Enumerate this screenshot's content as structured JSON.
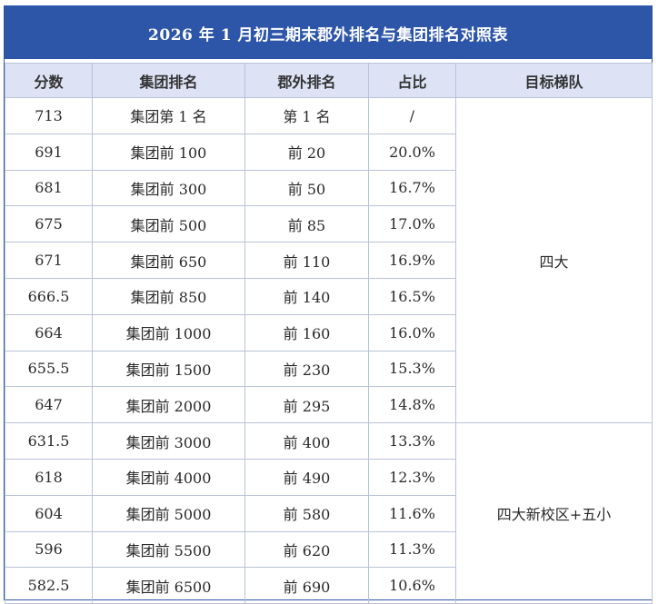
{
  "title": "2026 年 1 月初三期末郡外排名与集团排名对照表",
  "headers": {
    "score": "分数",
    "group_rank": "集团排名",
    "junwai_rank": "郡外排名",
    "ratio": "占比",
    "target_tier": "目标梯队"
  },
  "rows": [
    {
      "score": "713",
      "group_rank": "集团第 1 名",
      "junwai_rank": "第 1 名",
      "ratio": "/"
    },
    {
      "score": "691",
      "group_rank": "集团前 100",
      "junwai_rank": "前 20",
      "ratio": "20.0%"
    },
    {
      "score": "681",
      "group_rank": "集团前 300",
      "junwai_rank": "前 50",
      "ratio": "16.7%"
    },
    {
      "score": "675",
      "group_rank": "集团前 500",
      "junwai_rank": "前 85",
      "ratio": "17.0%"
    },
    {
      "score": "671",
      "group_rank": "集团前 650",
      "junwai_rank": "前 110",
      "ratio": "16.9%"
    },
    {
      "score": "666.5",
      "group_rank": "集团前 850",
      "junwai_rank": "前 140",
      "ratio": "16.5%"
    },
    {
      "score": "664",
      "group_rank": "集团前 1000",
      "junwai_rank": "前 160",
      "ratio": "16.0%"
    },
    {
      "score": "655.5",
      "group_rank": "集团前 1500",
      "junwai_rank": "前 230",
      "ratio": "15.3%"
    },
    {
      "score": "647",
      "group_rank": "集团前 2000",
      "junwai_rank": "前 295",
      "ratio": "14.8%"
    },
    {
      "score": "631.5",
      "group_rank": "集团前 3000",
      "junwai_rank": "前 400",
      "ratio": "13.3%"
    },
    {
      "score": "618",
      "group_rank": "集团前 4000",
      "junwai_rank": "前 490",
      "ratio": "12.3%"
    },
    {
      "score": "604",
      "group_rank": "集团前 5000",
      "junwai_rank": "前 580",
      "ratio": "11.6%"
    },
    {
      "score": "596",
      "group_rank": "集团前 5500",
      "junwai_rank": "前 620",
      "ratio": "11.3%"
    },
    {
      "score": "582.5",
      "group_rank": "集团前 6500",
      "junwai_rank": "前 690",
      "ratio": "10.6%"
    }
  ],
  "tiers": [
    {
      "label": "四大",
      "rows": 9
    },
    {
      "label": "四大新校区+五小",
      "rows": 5
    }
  ],
  "colors": {
    "header_bar": "#2d56a8",
    "column_header_bg": "#dde3f5",
    "grid": "#b8c3d8"
  }
}
